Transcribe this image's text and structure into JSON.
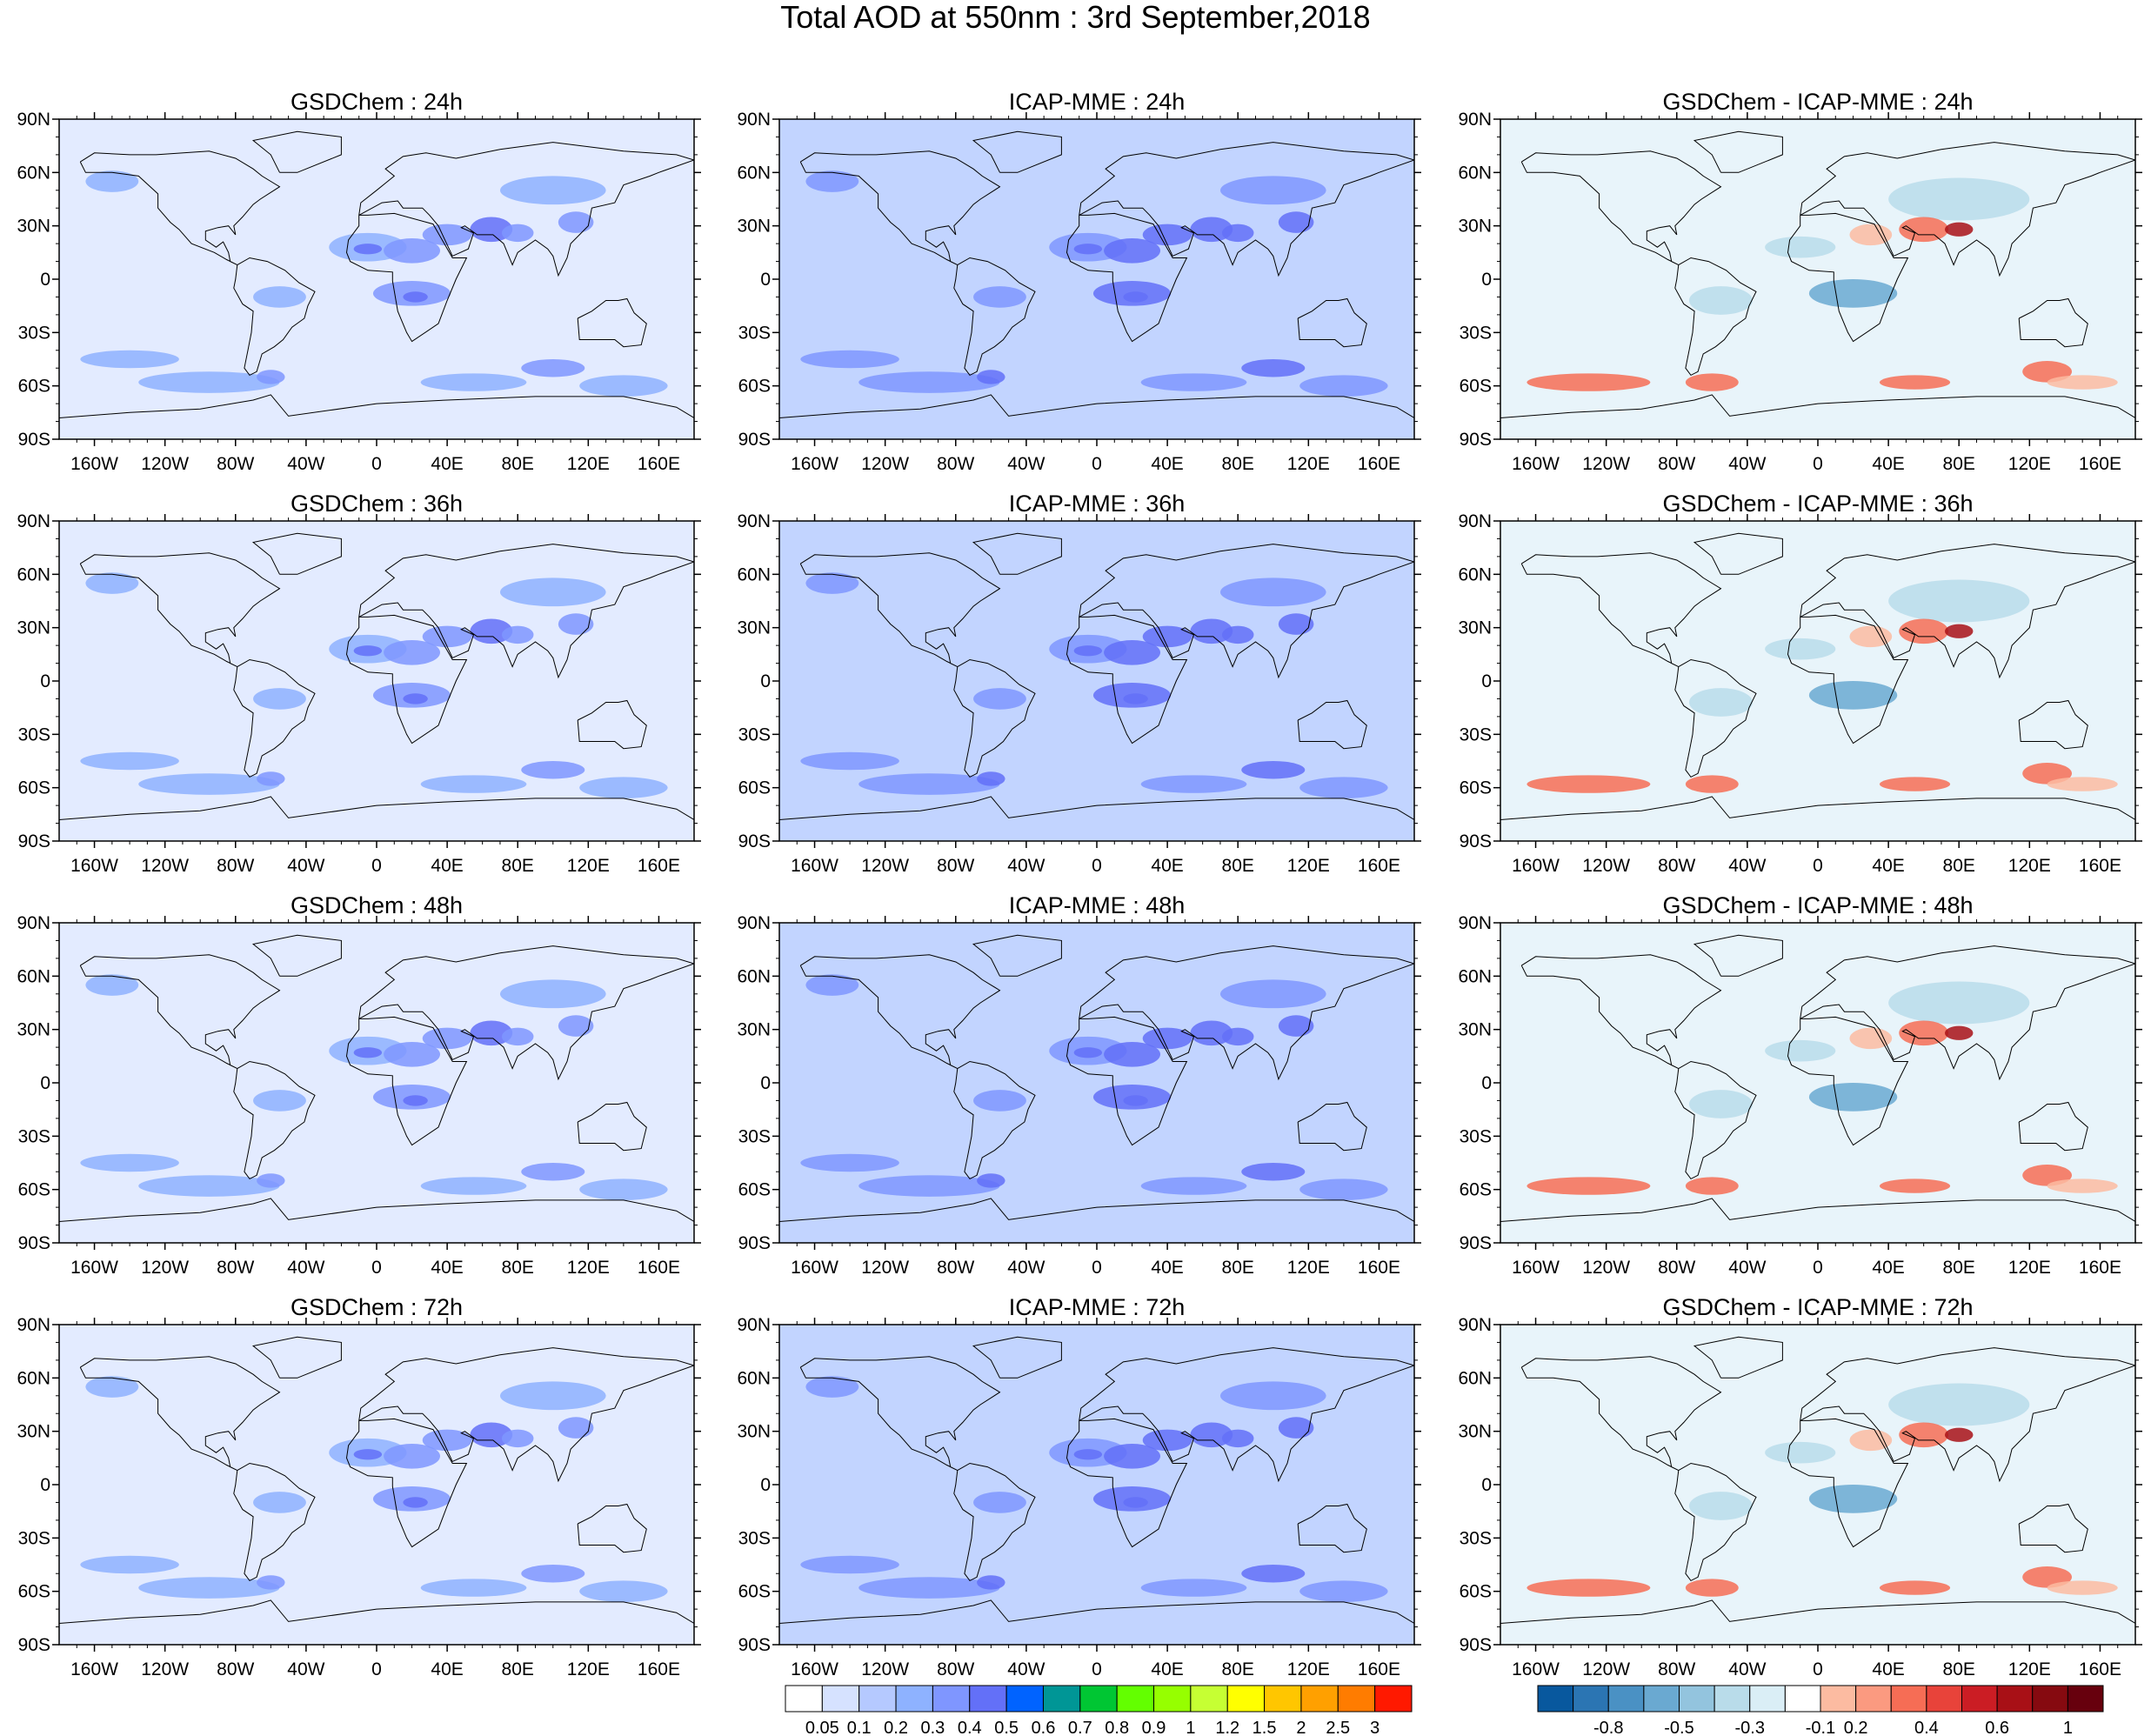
{
  "title": "Total AOD at 550nm : 3rd September,2018",
  "columns": [
    {
      "id": "gsd",
      "label": "GSDChem",
      "scheme": "aod"
    },
    {
      "id": "icap",
      "label": "ICAP-MME",
      "scheme": "aod"
    },
    {
      "id": "diff",
      "label": "GSDChem - ICAP-MME",
      "scheme": "diff"
    }
  ],
  "lead_times": [
    "24h",
    "36h",
    "48h",
    "72h"
  ],
  "panels": [
    [
      "GSDChem : 24h",
      "ICAP-MME : 24h",
      "GSDChem - ICAP-MME : 24h"
    ],
    [
      "GSDChem : 36h",
      "ICAP-MME : 36h",
      "GSDChem - ICAP-MME : 36h"
    ],
    [
      "GSDChem : 48h",
      "ICAP-MME : 48h",
      "GSDChem - ICAP-MME : 48h"
    ],
    [
      "GSDChem : 72h",
      "ICAP-MME : 72h",
      "GSDChem - ICAP-MME : 72h"
    ]
  ],
  "lat_labels": [
    "90N",
    "60N",
    "30N",
    "0",
    "30S",
    "60S",
    "90S"
  ],
  "lon_labels": [
    "160W",
    "120W",
    "80W",
    "40W",
    "0",
    "40E",
    "80E",
    "120E",
    "160E"
  ],
  "colorbars": {
    "aod": {
      "labels": [
        "0.05",
        "0.1",
        "0.2",
        "0.3",
        "0.4",
        "0.5",
        "0.6",
        "0.7",
        "0.8",
        "0.9",
        "1",
        "1.2",
        "1.5",
        "2",
        "2.5",
        "3"
      ],
      "colors": [
        "#ffffff",
        "#d6e2ff",
        "#b5c9ff",
        "#8eb2ff",
        "#7f96ff",
        "#6370f8",
        "#0063ff",
        "#009696",
        "#00c633",
        "#63ff00",
        "#96ff00",
        "#c6ff33",
        "#ffff00",
        "#ffc600",
        "#ffa000",
        "#ff7c00",
        "#ff1900"
      ]
    },
    "diff": {
      "labels": [
        "-0.8",
        "-0.5",
        "-0.3",
        "-0.1",
        "0.2",
        "0.4",
        "0.6",
        "1"
      ],
      "colors": [
        "#08589e",
        "#2b75b3",
        "#4a91c4",
        "#6aa9d1",
        "#93c4de",
        "#b9dcea",
        "#daeef6",
        "#ffffff",
        "#fcbba1",
        "#fb9a80",
        "#f66d55",
        "#e8433a",
        "#cb1d24",
        "#a81016",
        "#860a10",
        "#67000d"
      ]
    }
  }
}
